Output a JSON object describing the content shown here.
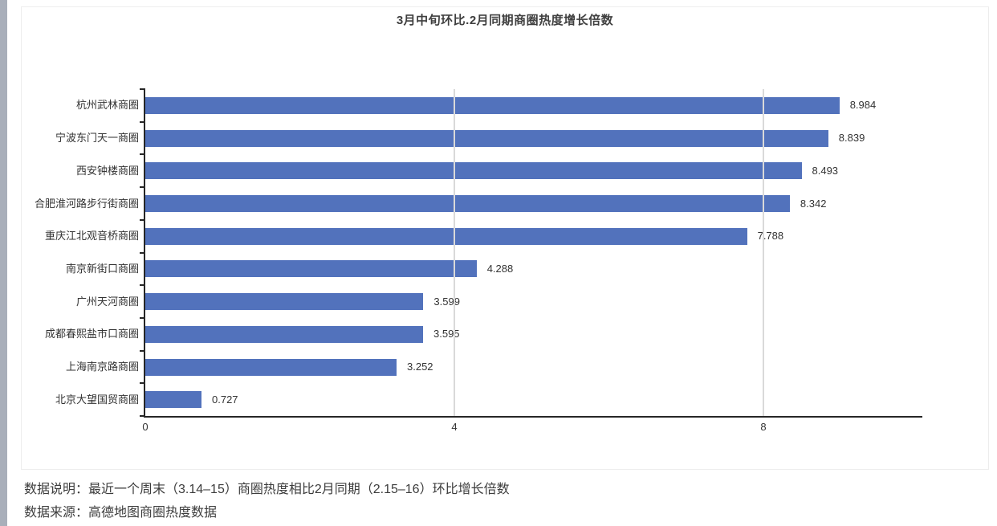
{
  "notes": {
    "line1": "数据说明：最近一个周末（3.14–15）商圈热度相比2月同期（2.15–16）环比增长倍数",
    "line2": "数据来源：高德地图商圈热度数据"
  },
  "chart_data": {
    "type": "bar",
    "orientation": "horizontal",
    "title": "3月中旬环比.2月同期商圈热度增长倍数",
    "categories": [
      "杭州武林商圈",
      "宁波东门天一商圈",
      "西安钟楼商圈",
      "合肥淮河路步行街商圈",
      "重庆江北观音桥商圈",
      "南京新街口商圈",
      "广州天河商圈",
      "成都春熙盐市口商圈",
      "上海南京路商圈",
      "北京大望国贸商圈"
    ],
    "values": [
      8.984,
      8.839,
      8.493,
      8.342,
      7.788,
      4.288,
      3.599,
      3.595,
      3.252,
      0.727
    ],
    "value_labels": [
      "8.984",
      "8.839",
      "8.493",
      "8.342",
      "7.788",
      "4.288",
      "3.599",
      "3.595",
      "3.252",
      "0.727"
    ],
    "xlabel": "",
    "ylabel": "",
    "xticks": [
      0,
      4,
      8
    ],
    "xlim": [
      0,
      10.06
    ],
    "grid": "vertical gridlines at x=4 and x=8, drawn over bars",
    "legend": "none",
    "bar_color": "#5272bc",
    "axis_color": "#262626",
    "gridline_color": "#d9d9d9",
    "text_color": "#333333"
  }
}
